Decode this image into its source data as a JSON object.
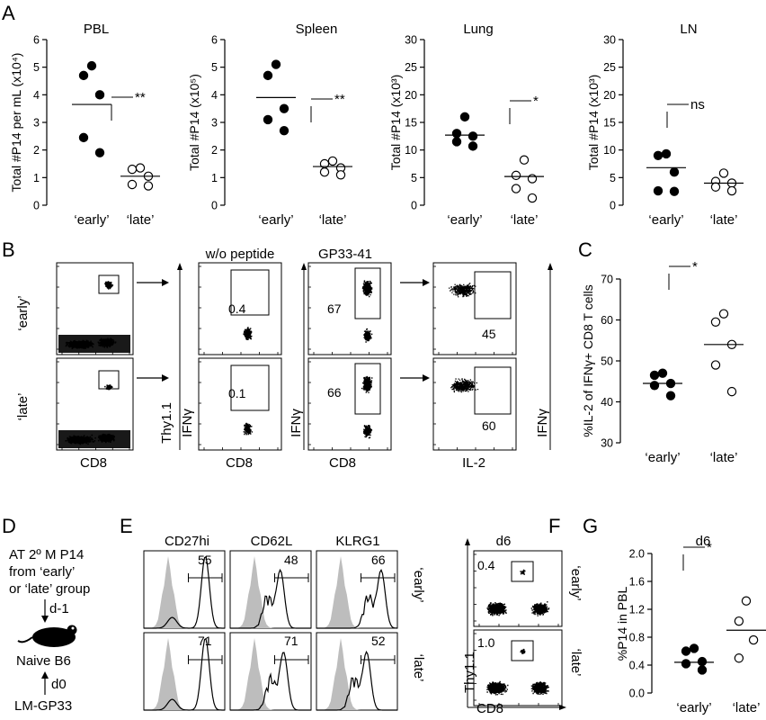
{
  "figure": {
    "panel_letters": [
      "A",
      "B",
      "C",
      "D",
      "E",
      "F",
      "G"
    ]
  },
  "chart_data": [
    {
      "panel": "A",
      "type": "scatter",
      "title": "PBL",
      "ylabel": "Total #P14 per mL (x10⁴)",
      "categories": [
        "‘early’",
        "‘late’"
      ],
      "ylim": [
        0,
        6
      ],
      "yticks": [
        0,
        1,
        2,
        3,
        4,
        5,
        6
      ],
      "series": [
        {
          "filled": true,
          "values": [
            5.05,
            4.7,
            4.0,
            2.45,
            1.9
          ],
          "mean": 3.65
        },
        {
          "filled": false,
          "values": [
            1.35,
            1.3,
            1.05,
            0.75,
            0.7
          ],
          "mean": 1.05
        }
      ],
      "significance": "**"
    },
    {
      "panel": "A",
      "type": "scatter",
      "title": "Spleen",
      "ylabel": "Total #P14 (x10⁵)",
      "categories": [
        "‘early’",
        "‘late’"
      ],
      "ylim": [
        0,
        6
      ],
      "yticks": [
        0,
        1,
        2,
        3,
        4,
        5,
        6
      ],
      "series": [
        {
          "filled": true,
          "values": [
            5.1,
            4.7,
            3.5,
            3.1,
            2.7
          ],
          "mean": 3.9
        },
        {
          "filled": false,
          "values": [
            1.6,
            1.5,
            1.35,
            1.2,
            1.1
          ],
          "mean": 1.4
        }
      ],
      "significance": "**"
    },
    {
      "panel": "A",
      "type": "scatter",
      "title": "Lung",
      "ylabel": "Total #P14 (x10³)",
      "categories": [
        "‘early’",
        "‘late’"
      ],
      "ylim": [
        0,
        30
      ],
      "yticks": [
        0,
        5,
        10,
        15,
        20,
        25,
        30
      ],
      "series": [
        {
          "filled": true,
          "values": [
            16,
            13,
            12.5,
            11.5,
            10.7
          ],
          "mean": 12.7
        },
        {
          "filled": false,
          "values": [
            8.2,
            5.4,
            4.8,
            3.0,
            1.3
          ],
          "mean": 5.2
        }
      ],
      "significance": "*"
    },
    {
      "panel": "A",
      "type": "scatter",
      "title": "LN",
      "ylabel": "Total #P14 (x10³)",
      "categories": [
        "‘early’",
        "‘late’"
      ],
      "ylim": [
        0,
        30
      ],
      "yticks": [
        0,
        5,
        10,
        15,
        20,
        25,
        30
      ],
      "series": [
        {
          "filled": true,
          "values": [
            9.3,
            9.0,
            6.0,
            2.6,
            2.5
          ],
          "mean": 6.8
        },
        {
          "filled": false,
          "values": [
            5.8,
            4.3,
            4.0,
            3.3,
            2.6
          ],
          "mean": 4.0
        }
      ],
      "significance": "ns"
    },
    {
      "panel": "C",
      "type": "scatter",
      "title": "",
      "ylabel": "%IL-2 of IFNγ+ CD8 T cells",
      "categories": [
        "‘early’",
        "‘late’"
      ],
      "ylim": [
        30,
        70
      ],
      "yticks": [
        30,
        40,
        50,
        60,
        70
      ],
      "series": [
        {
          "filled": true,
          "values": [
            47,
            46.5,
            44.5,
            44,
            41.5
          ],
          "mean": 44.5
        },
        {
          "filled": false,
          "values": [
            61.5,
            59.5,
            54,
            49,
            42.5
          ],
          "mean": 54
        }
      ],
      "significance": "*"
    },
    {
      "panel": "G",
      "type": "scatter",
      "title": "d6",
      "ylabel": "%P14 in PBL",
      "categories": [
        "‘early’",
        "‘late’"
      ],
      "ylim": [
        0,
        2.0
      ],
      "yticks": [
        "0.0",
        "0.4",
        "0.8",
        "1.2",
        "1.6",
        "2.0"
      ],
      "series": [
        {
          "filled": true,
          "values": [
            0.64,
            0.6,
            0.45,
            0.42,
            0.33
          ],
          "mean": 0.44
        },
        {
          "filled": false,
          "values": [
            1.32,
            1.03,
            0.76,
            0.5
          ],
          "mean": 0.9
        }
      ],
      "significance": "*"
    }
  ],
  "flow": {
    "rows": [
      "‘early’",
      "‘late’"
    ],
    "col_titles": [
      "w/o peptide",
      "GP33-41"
    ],
    "axes": {
      "cd8": "CD8",
      "thy": "Thy1.1",
      "ifn": "IFNγ",
      "il2": "IL-2"
    },
    "gates": {
      "wo_early": "0.4",
      "wo_late": "0.1",
      "gp_early": "67",
      "gp_late": "66",
      "il2_early": "45",
      "il2_late": "60"
    }
  },
  "schematic": {
    "lines": [
      "AT 2º M P14",
      "from ‘early’",
      "or ‘late’ group"
    ],
    "step1": "d-1",
    "mouse": "Naive B6",
    "step0": "d0",
    "infection": "LM-GP33"
  },
  "histograms": {
    "markers": [
      "CD27hi",
      "CD62L",
      "KLRG1"
    ],
    "rows": [
      "‘early’",
      "‘late’"
    ],
    "values": [
      [
        "55",
        "48",
        "66"
      ],
      [
        "71",
        "71",
        "52"
      ]
    ]
  },
  "panel_f": {
    "title": "d6",
    "gates": [
      "0.4",
      "1.0"
    ],
    "rows": [
      "‘early’",
      "‘late’"
    ],
    "xlabel": "CD8",
    "ylabel": "Thy1.1"
  }
}
